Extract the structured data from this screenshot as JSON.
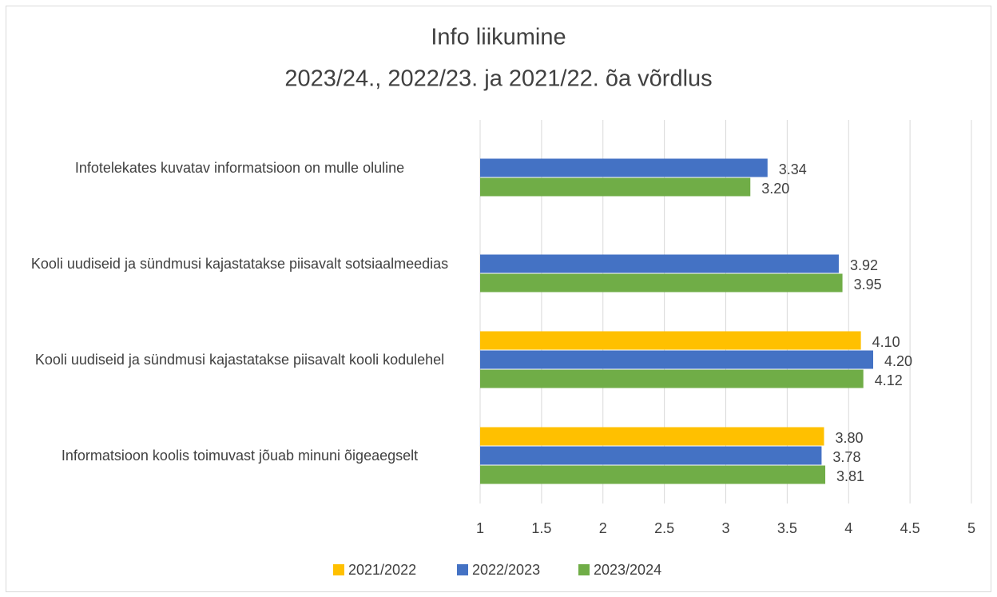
{
  "chart_data": {
    "type": "hbar",
    "title": "Info liikumine",
    "subtitle": "2023/24., 2022/23. ja 2021/22. õa võrdlus",
    "categories": [
      "Infotelekates kuvatav informatsioon on mulle oluline",
      "Kooli uudiseid ja sündmusi kajastatakse piisavalt sotsiaalmeedias",
      "Kooli uudiseid ja sündmusi kajastatakse piisavalt kooli kodulehel",
      "Informatsioon koolis toimuvast jõuab minuni õigeaegselt"
    ],
    "series": [
      {
        "name": "2021/2022",
        "color": "#ffc000",
        "values": [
          null,
          null,
          4.1,
          3.8
        ],
        "value_labels": [
          null,
          null,
          "4.10",
          "3.80"
        ]
      },
      {
        "name": "2022/2023",
        "color": "#4472c4",
        "values": [
          3.34,
          3.92,
          4.2,
          3.78
        ],
        "value_labels": [
          "3.34",
          "3.92",
          "4.20",
          "3.78"
        ]
      },
      {
        "name": "2023/2024",
        "color": "#70ad47",
        "values": [
          3.2,
          3.95,
          4.12,
          3.81
        ],
        "value_labels": [
          "3.20",
          "3.95",
          "4.12",
          "3.81"
        ]
      }
    ],
    "xlim": [
      1,
      5
    ],
    "xticks": [
      1,
      1.5,
      2,
      2.5,
      3,
      3.5,
      4,
      4.5,
      5
    ],
    "grid": true,
    "legend": "bottom"
  }
}
